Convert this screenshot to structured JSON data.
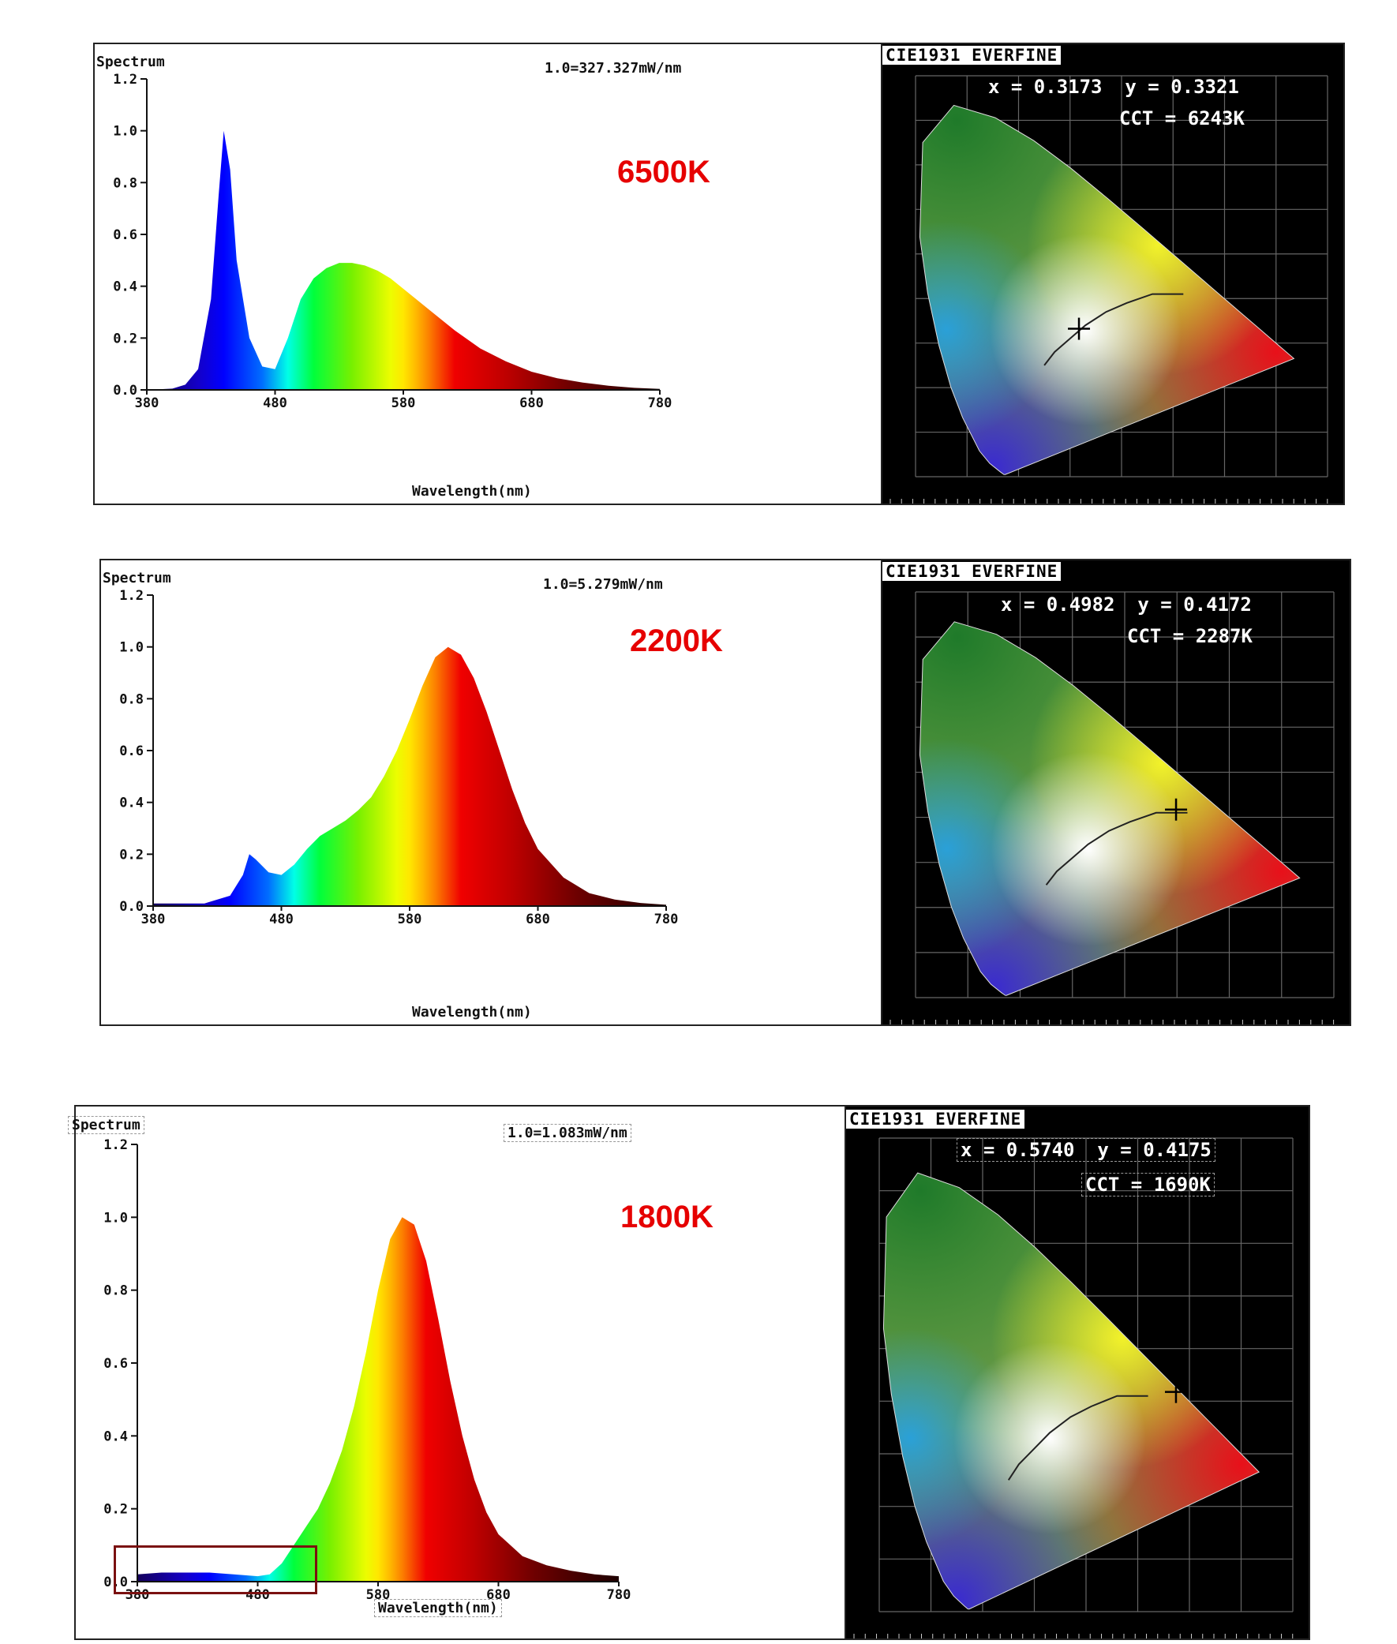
{
  "panels": [
    {
      "cct_label": "6500K",
      "spectrum_title": "Spectrum",
      "scale": "1.0=327.327mW/nm",
      "cie_title": "CIE1931 EVERFINE",
      "cie_xy": "x = 0.3173  y = 0.3321",
      "cie_cct": "CCT = 6243K"
    },
    {
      "cct_label": "2200K",
      "spectrum_title": "Spectrum",
      "scale": "1.0=5.279mW/nm",
      "cie_title": "CIE1931 EVERFINE",
      "cie_xy": "x = 0.4982  y = 0.4172",
      "cie_cct": "CCT = 2287K"
    },
    {
      "cct_label": "1800K",
      "spectrum_title": "Spectrum",
      "scale": "1.0=1.083mW/nm",
      "cie_title": "CIE1931 EVERFINE",
      "cie_xy": "x = 0.5740  y = 0.4175",
      "cie_cct": "CCT = 1690K"
    }
  ],
  "chart_data": [
    {
      "type": "area",
      "title": "Spectrum",
      "scale_note": "1.0=327.327mW/nm",
      "xlabel": "Wavelength(nm)",
      "ylabel": "",
      "xlim": [
        380,
        780
      ],
      "ylim": [
        0,
        1.2
      ],
      "xticks": [
        380,
        480,
        580,
        680,
        780
      ],
      "yticks": [
        "0.0",
        "0.2",
        "0.4",
        "0.6",
        "0.8",
        "1.0",
        "1.2"
      ],
      "x": [
        380,
        400,
        410,
        420,
        430,
        436,
        440,
        445,
        450,
        460,
        470,
        480,
        490,
        500,
        510,
        520,
        530,
        540,
        550,
        560,
        570,
        580,
        600,
        620,
        640,
        660,
        680,
        700,
        720,
        740,
        760,
        780
      ],
      "y": [
        0.0,
        0.005,
        0.02,
        0.08,
        0.35,
        0.75,
        1.0,
        0.85,
        0.5,
        0.2,
        0.09,
        0.08,
        0.2,
        0.35,
        0.43,
        0.47,
        0.49,
        0.49,
        0.48,
        0.46,
        0.43,
        0.39,
        0.31,
        0.23,
        0.16,
        0.11,
        0.07,
        0.045,
        0.028,
        0.016,
        0.008,
        0.004
      ],
      "cie_point": [
        0.3173,
        0.3321
      ]
    },
    {
      "type": "area",
      "title": "Spectrum",
      "scale_note": "1.0=5.279mW/nm",
      "xlabel": "Wavelength(nm)",
      "ylabel": "",
      "xlim": [
        380,
        780
      ],
      "ylim": [
        0,
        1.2
      ],
      "xticks": [
        380,
        480,
        580,
        680,
        780
      ],
      "yticks": [
        "0.0",
        "0.2",
        "0.4",
        "0.6",
        "0.8",
        "1.0",
        "1.2"
      ],
      "x": [
        380,
        420,
        440,
        450,
        455,
        460,
        470,
        480,
        490,
        500,
        510,
        520,
        530,
        540,
        550,
        560,
        570,
        580,
        590,
        600,
        610,
        620,
        630,
        640,
        650,
        660,
        670,
        680,
        700,
        720,
        740,
        760,
        780
      ],
      "y": [
        0.01,
        0.01,
        0.04,
        0.12,
        0.2,
        0.18,
        0.13,
        0.12,
        0.16,
        0.22,
        0.27,
        0.3,
        0.33,
        0.37,
        0.42,
        0.5,
        0.6,
        0.72,
        0.85,
        0.96,
        1.0,
        0.97,
        0.88,
        0.75,
        0.6,
        0.45,
        0.32,
        0.22,
        0.11,
        0.05,
        0.025,
        0.012,
        0.005
      ],
      "cie_point": [
        0.4982,
        0.4172
      ]
    },
    {
      "type": "area",
      "title": "Spectrum",
      "scale_note": "1.0=1.083mW/nm",
      "xlabel": "Wavelength(nm)",
      "ylabel": "",
      "xlim": [
        380,
        780
      ],
      "ylim": [
        0,
        1.2
      ],
      "xticks": [
        380,
        480,
        580,
        680,
        780
      ],
      "yticks": [
        "0.0",
        "0.2",
        "0.4",
        "0.6",
        "0.8",
        "1.0",
        "1.2"
      ],
      "x": [
        380,
        400,
        420,
        440,
        460,
        480,
        490,
        500,
        510,
        520,
        530,
        540,
        550,
        560,
        570,
        580,
        590,
        600,
        610,
        620,
        630,
        640,
        650,
        660,
        670,
        680,
        700,
        720,
        740,
        760,
        780
      ],
      "y": [
        0.02,
        0.025,
        0.025,
        0.025,
        0.02,
        0.015,
        0.02,
        0.05,
        0.1,
        0.15,
        0.2,
        0.27,
        0.36,
        0.48,
        0.63,
        0.8,
        0.94,
        1.0,
        0.98,
        0.88,
        0.72,
        0.55,
        0.4,
        0.28,
        0.19,
        0.13,
        0.07,
        0.045,
        0.03,
        0.02,
        0.015
      ],
      "cie_point": [
        0.574,
        0.4175
      ]
    }
  ]
}
